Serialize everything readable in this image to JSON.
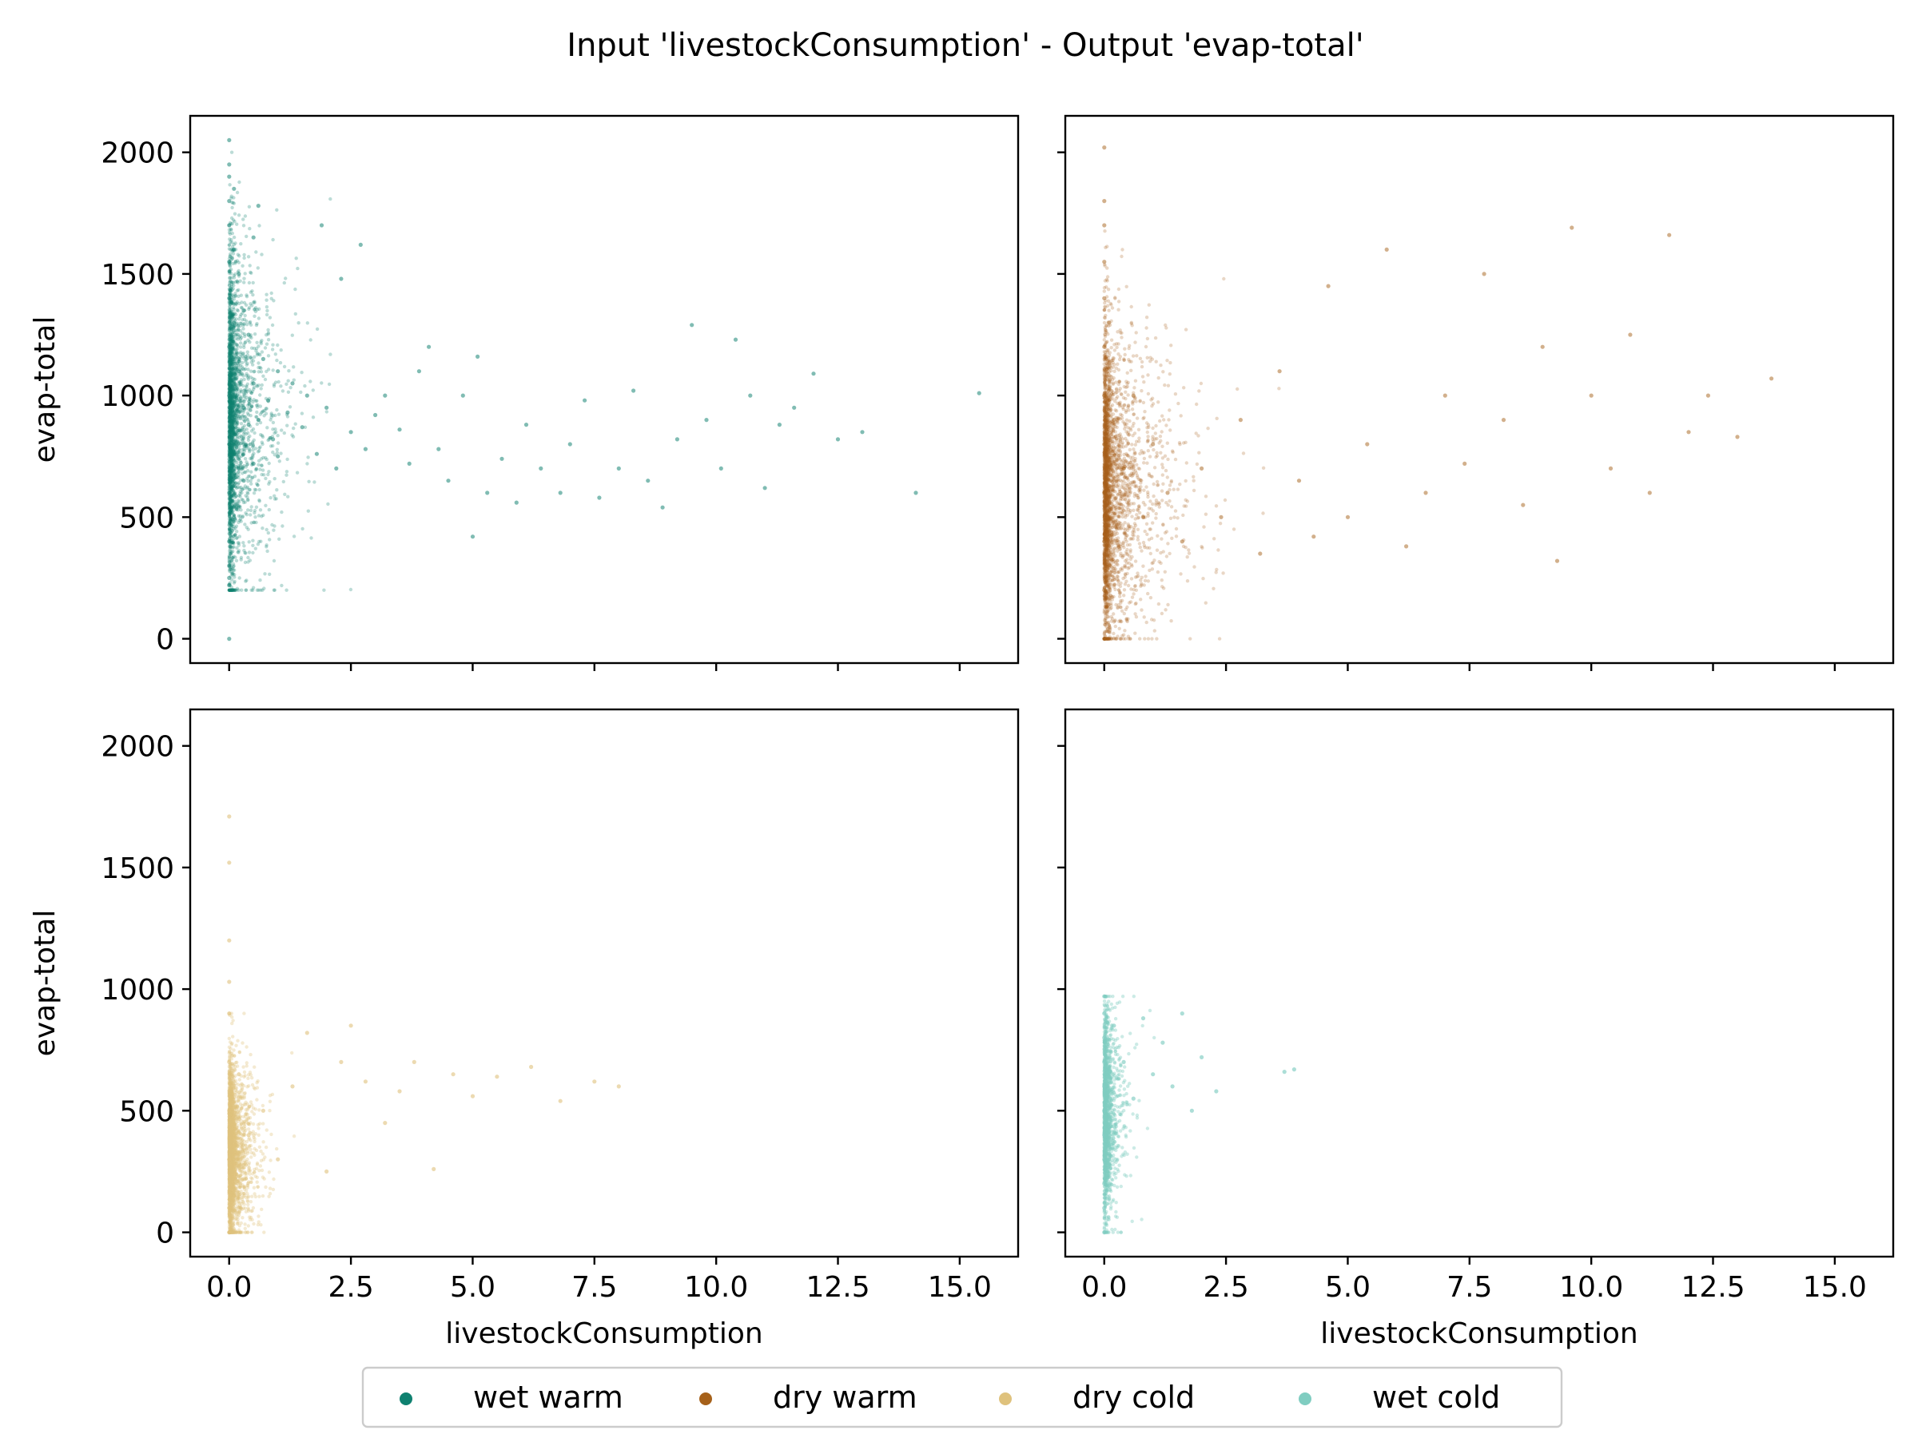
{
  "chart_data": {
    "type": "scatter",
    "title": "Input 'livestockConsumption' - Output 'evap-total'",
    "xlabel": "livestockConsumption",
    "ylabel": "evap-total",
    "xlim": [
      -0.8,
      16.2
    ],
    "ylim": [
      -100,
      2150
    ],
    "x_ticks": [
      0.0,
      2.5,
      5.0,
      7.5,
      10.0,
      12.5,
      15.0
    ],
    "x_tick_labels": [
      "0.0",
      "2.5",
      "5.0",
      "7.5",
      "10.0",
      "12.5",
      "15.0"
    ],
    "y_ticks": [
      0,
      500,
      1000,
      1500,
      2000
    ],
    "y_tick_labels": [
      "0",
      "500",
      "1000",
      "1500",
      "2000"
    ],
    "grid": false,
    "legend_position": "bottom-center",
    "legend": [
      {
        "name": "wet warm",
        "color": "#0f8170"
      },
      {
        "name": "dry warm",
        "color": "#a6611a"
      },
      {
        "name": "dry cold",
        "color": "#dfc27d"
      },
      {
        "name": "wet cold",
        "color": "#80cdc1"
      }
    ],
    "panels": [
      {
        "series": "wet warm",
        "color": "#0f8170",
        "layout": "top-left",
        "point_alpha": 0.28,
        "points": [
          [
            0.0,
            0
          ],
          [
            0.0,
            2050
          ],
          [
            0.0,
            1950
          ],
          [
            0.0,
            1900
          ],
          [
            0.0,
            1800
          ],
          [
            0.0,
            1700
          ],
          [
            0.0,
            1550
          ],
          [
            0.0,
            1400
          ],
          [
            0.0,
            1200
          ],
          [
            0.0,
            1000
          ],
          [
            0.0,
            800
          ],
          [
            0.0,
            600
          ],
          [
            0.0,
            400
          ],
          [
            0.0,
            300
          ],
          [
            0.0,
            250
          ],
          [
            0.0,
            220
          ],
          [
            0.1,
            1850
          ],
          [
            0.1,
            1600
          ],
          [
            0.1,
            1300
          ],
          [
            0.1,
            900
          ],
          [
            0.1,
            500
          ],
          [
            0.2,
            1500
          ],
          [
            0.2,
            1100
          ],
          [
            0.2,
            700
          ],
          [
            0.3,
            1350
          ],
          [
            0.3,
            950
          ],
          [
            0.3,
            650
          ],
          [
            0.4,
            1250
          ],
          [
            0.4,
            880
          ],
          [
            0.5,
            1650
          ],
          [
            0.5,
            1050
          ],
          [
            0.5,
            720
          ],
          [
            0.6,
            1780
          ],
          [
            0.6,
            900
          ],
          [
            0.7,
            1150
          ],
          [
            0.8,
            980
          ],
          [
            0.9,
            820
          ],
          [
            1.0,
            1100
          ],
          [
            1.0,
            750
          ],
          [
            1.2,
            930
          ],
          [
            1.3,
            1050
          ],
          [
            1.5,
            870
          ],
          [
            1.6,
            1000
          ],
          [
            1.8,
            760
          ],
          [
            1.9,
            1700
          ],
          [
            2.0,
            950
          ],
          [
            2.2,
            700
          ],
          [
            2.3,
            1480
          ],
          [
            2.5,
            850
          ],
          [
            2.7,
            1620
          ],
          [
            2.8,
            780
          ],
          [
            3.0,
            920
          ],
          [
            3.2,
            1000
          ],
          [
            3.5,
            860
          ],
          [
            3.7,
            720
          ],
          [
            3.9,
            1100
          ],
          [
            4.1,
            1200
          ],
          [
            4.3,
            780
          ],
          [
            4.5,
            650
          ],
          [
            4.8,
            1000
          ],
          [
            5.0,
            420
          ],
          [
            5.1,
            1160
          ],
          [
            5.3,
            600
          ],
          [
            5.6,
            740
          ],
          [
            5.9,
            560
          ],
          [
            6.1,
            880
          ],
          [
            6.4,
            700
          ],
          [
            6.8,
            600
          ],
          [
            7.0,
            800
          ],
          [
            7.3,
            980
          ],
          [
            7.6,
            580
          ],
          [
            8.0,
            700
          ],
          [
            8.3,
            1020
          ],
          [
            8.6,
            650
          ],
          [
            8.9,
            540
          ],
          [
            9.2,
            820
          ],
          [
            9.5,
            1290
          ],
          [
            9.8,
            900
          ],
          [
            10.1,
            700
          ],
          [
            10.4,
            1230
          ],
          [
            10.7,
            1000
          ],
          [
            11.0,
            620
          ],
          [
            11.3,
            880
          ],
          [
            11.6,
            950
          ],
          [
            12.0,
            1090
          ],
          [
            12.5,
            820
          ],
          [
            13.0,
            850
          ],
          [
            14.1,
            600
          ],
          [
            15.4,
            1010
          ]
        ]
      },
      {
        "series": "dry warm",
        "color": "#a6611a",
        "layout": "top-right",
        "point_alpha": 0.25,
        "points": [
          [
            0.0,
            2020
          ],
          [
            0.0,
            1800
          ],
          [
            0.0,
            1700
          ],
          [
            0.0,
            1550
          ],
          [
            0.0,
            1400
          ],
          [
            0.0,
            1200
          ],
          [
            0.0,
            1000
          ],
          [
            0.0,
            800
          ],
          [
            0.0,
            600
          ],
          [
            0.0,
            400
          ],
          [
            0.0,
            200
          ],
          [
            0.0,
            0
          ],
          [
            0.1,
            1300
          ],
          [
            0.2,
            900
          ],
          [
            0.4,
            700
          ],
          [
            0.6,
            1000
          ],
          [
            0.8,
            500
          ],
          [
            1.0,
            800
          ],
          [
            1.3,
            600
          ],
          [
            1.6,
            400
          ],
          [
            2.0,
            700
          ],
          [
            2.4,
            500
          ],
          [
            2.8,
            900
          ],
          [
            3.2,
            350
          ],
          [
            3.6,
            1100
          ],
          [
            4.0,
            650
          ],
          [
            4.3,
            420
          ],
          [
            4.6,
            1450
          ],
          [
            5.0,
            500
          ],
          [
            5.4,
            800
          ],
          [
            5.8,
            1600
          ],
          [
            6.2,
            380
          ],
          [
            6.6,
            600
          ],
          [
            7.0,
            1000
          ],
          [
            7.4,
            720
          ],
          [
            7.8,
            1500
          ],
          [
            8.2,
            900
          ],
          [
            8.6,
            550
          ],
          [
            9.0,
            1200
          ],
          [
            9.3,
            320
          ],
          [
            9.6,
            1690
          ],
          [
            10.0,
            1000
          ],
          [
            10.4,
            700
          ],
          [
            10.8,
            1250
          ],
          [
            11.2,
            600
          ],
          [
            11.6,
            1660
          ],
          [
            12.0,
            850
          ],
          [
            12.4,
            1000
          ],
          [
            13.0,
            830
          ],
          [
            13.7,
            1070
          ]
        ]
      },
      {
        "series": "dry cold",
        "color": "#dfc27d",
        "layout": "bottom-left",
        "point_alpha": 0.35,
        "points": [
          [
            0.0,
            1710
          ],
          [
            0.0,
            1520
          ],
          [
            0.0,
            1200
          ],
          [
            0.0,
            1030
          ],
          [
            0.0,
            900
          ],
          [
            0.0,
            700
          ],
          [
            0.0,
            500
          ],
          [
            0.0,
            300
          ],
          [
            0.0,
            100
          ],
          [
            0.0,
            0
          ],
          [
            0.2,
            650
          ],
          [
            0.4,
            400
          ],
          [
            0.7,
            500
          ],
          [
            1.0,
            300
          ],
          [
            1.3,
            600
          ],
          [
            1.6,
            820
          ],
          [
            2.0,
            250
          ],
          [
            2.3,
            700
          ],
          [
            2.5,
            850
          ],
          [
            2.8,
            620
          ],
          [
            3.2,
            450
          ],
          [
            3.5,
            580
          ],
          [
            3.8,
            700
          ],
          [
            4.2,
            260
          ],
          [
            4.6,
            650
          ],
          [
            5.0,
            560
          ],
          [
            5.5,
            640
          ],
          [
            6.2,
            680
          ],
          [
            6.8,
            540
          ],
          [
            7.5,
            620
          ],
          [
            8.0,
            600
          ]
        ]
      },
      {
        "series": "wet cold",
        "color": "#80cdc1",
        "layout": "bottom-right",
        "point_alpha": 0.4,
        "points": [
          [
            0.0,
            970
          ],
          [
            0.0,
            900
          ],
          [
            0.0,
            800
          ],
          [
            0.0,
            700
          ],
          [
            0.0,
            600
          ],
          [
            0.0,
            500
          ],
          [
            0.0,
            400
          ],
          [
            0.0,
            300
          ],
          [
            0.0,
            200
          ],
          [
            0.0,
            100
          ],
          [
            0.0,
            0
          ],
          [
            0.2,
            850
          ],
          [
            0.4,
            700
          ],
          [
            0.6,
            550
          ],
          [
            0.8,
            880
          ],
          [
            1.0,
            650
          ],
          [
            1.2,
            780
          ],
          [
            1.4,
            600
          ],
          [
            1.6,
            900
          ],
          [
            1.8,
            500
          ],
          [
            2.0,
            720
          ],
          [
            2.3,
            580
          ],
          [
            3.7,
            660
          ],
          [
            3.9,
            670
          ]
        ]
      }
    ]
  }
}
